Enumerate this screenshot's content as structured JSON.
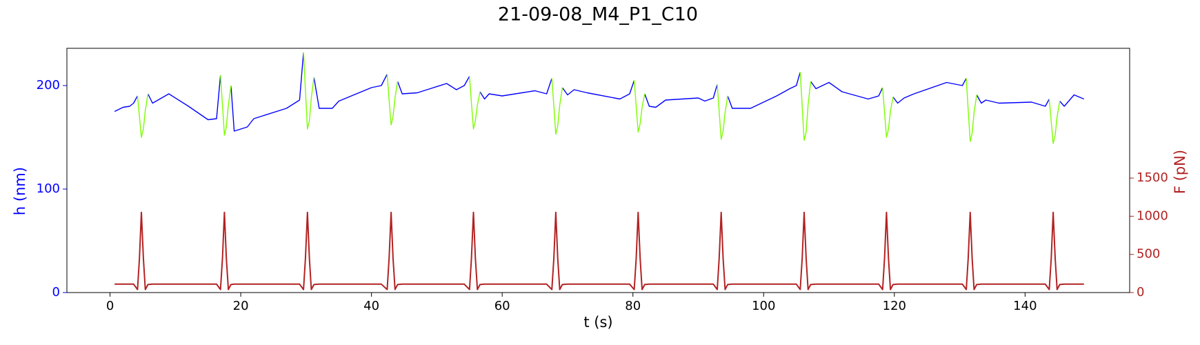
{
  "chart_data": {
    "type": "line",
    "title": "21-09-08_M4_P1_C10",
    "xlabel": "t (s)",
    "ylabel": "h (nm)",
    "y2label": "F (pN)",
    "ylabel_color": "#0000ff",
    "y2label_color": "#b22222",
    "xlim": [
      -6.6,
      156
    ],
    "xticks": [
      0,
      20,
      40,
      60,
      80,
      100,
      120,
      140
    ],
    "ylim": [
      0,
      236
    ],
    "yticks": [
      0,
      100,
      200
    ],
    "y2lim": [
      0,
      3200
    ],
    "y2ticks": [
      0,
      500,
      1000,
      1500
    ],
    "grid": false,
    "x": [
      0.7,
      2,
      3,
      3.6,
      4.2,
      4.5,
      4.8,
      5.1,
      5.4,
      5.8,
      6.5,
      9,
      12,
      15,
      16.3,
      16.9,
      17.2,
      17.5,
      17.8,
      18.1,
      18.5,
      19,
      21,
      22,
      27,
      29,
      29.6,
      29.9,
      30.2,
      30.5,
      30.8,
      31.2,
      32,
      34,
      35,
      40,
      41.5,
      42.4,
      42.7,
      43,
      43.3,
      43.6,
      44,
      44.7,
      47,
      49,
      51.5,
      53,
      54.2,
      55,
      55.3,
      55.6,
      55.9,
      56.2,
      56.6,
      57.3,
      58,
      60,
      65,
      66.8,
      67.6,
      67.9,
      68.2,
      68.5,
      68.8,
      69.2,
      70,
      71,
      73,
      78,
      79.5,
      80.2,
      80.5,
      80.8,
      81.1,
      81.4,
      81.8,
      82.5,
      83.5,
      85,
      90,
      91,
      92.3,
      92.9,
      93.2,
      93.5,
      93.8,
      94.1,
      94.5,
      95.2,
      98,
      102,
      104,
      105,
      105.6,
      105.9,
      106.2,
      106.5,
      106.8,
      107.2,
      108,
      110,
      112,
      116,
      117.6,
      118.2,
      118.5,
      118.8,
      119.1,
      119.4,
      119.8,
      120.5,
      121.5,
      123,
      128,
      130.4,
      131,
      131.3,
      131.6,
      131.9,
      132.2,
      132.6,
      133.3,
      134,
      136,
      141,
      143.1,
      143.7,
      144,
      144.3,
      144.6,
      144.9,
      145.3,
      146,
      147.5,
      149
    ],
    "series": [
      {
        "color": "#0000ff",
        "axis": "y",
        "values": [
          175,
          179,
          180,
          183,
          190,
          null,
          null,
          null,
          null,
          192,
          183,
          192,
          180,
          167,
          168,
          210,
          null,
          null,
          null,
          null,
          200,
          156,
          160,
          168,
          178,
          186,
          232,
          null,
          null,
          null,
          null,
          208,
          178,
          178,
          185,
          198,
          200,
          211,
          null,
          null,
          null,
          null,
          204,
          192,
          193,
          197,
          202,
          196,
          200,
          209,
          null,
          null,
          null,
          null,
          194,
          187,
          192,
          190,
          195,
          192,
          207,
          null,
          null,
          null,
          null,
          198,
          191,
          196,
          193,
          187,
          192,
          205,
          null,
          null,
          null,
          null,
          192,
          180,
          179,
          186,
          188,
          185,
          188,
          201,
          null,
          null,
          null,
          null,
          190,
          178,
          178,
          190,
          197,
          200,
          213,
          null,
          null,
          null,
          null,
          204,
          197,
          203,
          194,
          187,
          190,
          198,
          null,
          null,
          null,
          null,
          189,
          183,
          188,
          192,
          203,
          200,
          207,
          null,
          null,
          null,
          null,
          191,
          183,
          186,
          183,
          184,
          180,
          187,
          null,
          null,
          null,
          null,
          185,
          180,
          191,
          187
        ]
      },
      {
        "color": "#7cfc00",
        "axis": "y",
        "values": [
          null,
          null,
          null,
          null,
          190,
          170,
          150,
          158,
          176,
          192,
          null,
          null,
          null,
          null,
          null,
          210,
          181,
          152,
          160,
          181,
          200,
          null,
          null,
          null,
          null,
          null,
          232,
          195,
          158,
          166,
          188,
          208,
          null,
          null,
          null,
          null,
          null,
          211,
          186,
          162,
          170,
          188,
          204,
          null,
          null,
          null,
          null,
          null,
          null,
          209,
          183,
          158,
          166,
          181,
          194,
          null,
          null,
          null,
          null,
          null,
          207,
          180,
          153,
          161,
          181,
          198,
          null,
          null,
          null,
          null,
          null,
          205,
          180,
          155,
          163,
          179,
          192,
          null,
          null,
          null,
          null,
          null,
          null,
          201,
          175,
          148,
          156,
          174,
          190,
          null,
          null,
          null,
          null,
          null,
          213,
          180,
          147,
          155,
          181,
          204,
          null,
          null,
          null,
          null,
          null,
          198,
          174,
          150,
          158,
          175,
          189,
          null,
          null,
          null,
          null,
          null,
          207,
          176,
          146,
          154,
          174,
          191,
          null,
          null,
          null,
          null,
          null,
          187,
          165,
          144,
          152,
          170,
          185,
          null,
          null,
          null
        ]
      },
      {
        "color": "#b22222",
        "axis": "y2",
        "values": [
          110,
          110,
          110,
          110,
          40,
          450,
          1050,
          450,
          40,
          105,
          110,
          110,
          110,
          110,
          110,
          40,
          450,
          1050,
          450,
          40,
          105,
          110,
          110,
          110,
          110,
          110,
          40,
          450,
          1050,
          450,
          40,
          105,
          110,
          110,
          110,
          110,
          110,
          40,
          450,
          1050,
          450,
          40,
          105,
          110,
          110,
          110,
          110,
          110,
          110,
          40,
          450,
          1050,
          450,
          40,
          105,
          110,
          110,
          110,
          110,
          110,
          40,
          450,
          1050,
          450,
          40,
          105,
          110,
          110,
          110,
          110,
          110,
          40,
          450,
          1050,
          450,
          40,
          105,
          110,
          110,
          110,
          110,
          110,
          110,
          40,
          450,
          1050,
          450,
          40,
          105,
          110,
          110,
          110,
          110,
          110,
          40,
          450,
          1050,
          450,
          40,
          105,
          110,
          110,
          110,
          110,
          110,
          40,
          450,
          1050,
          450,
          40,
          105,
          110,
          110,
          110,
          110,
          110,
          40,
          450,
          1050,
          450,
          40,
          105,
          110,
          110,
          110,
          110,
          110,
          40,
          450,
          1050,
          450,
          40,
          105,
          110,
          110,
          110
        ]
      }
    ]
  }
}
